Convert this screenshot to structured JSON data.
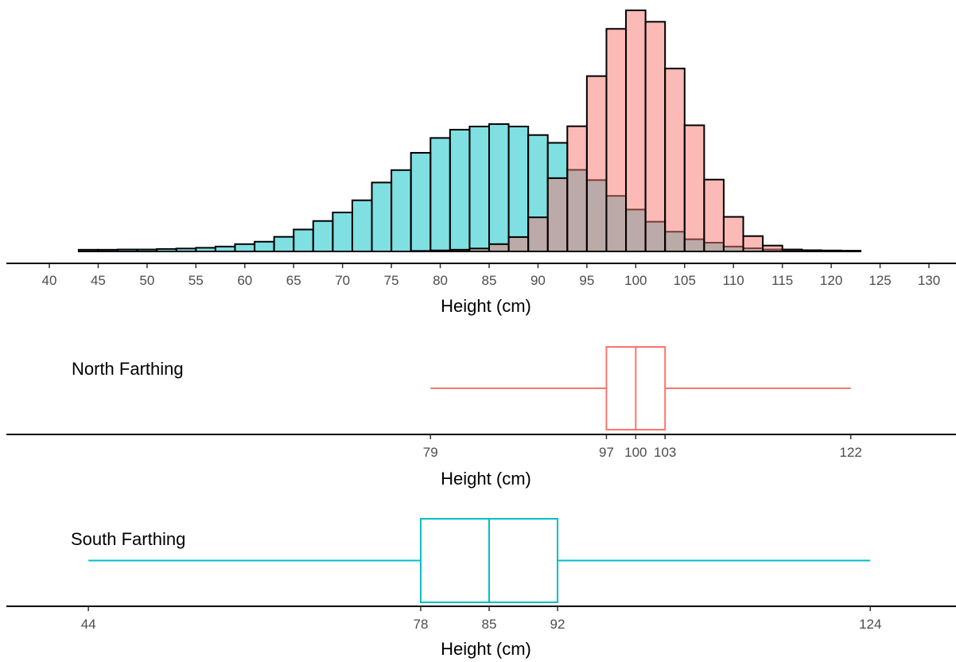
{
  "colors": {
    "north": "#F8766D",
    "north_fill": "#F8766D",
    "south": "#00BFC4",
    "south_fill": "#00BFC4",
    "bar_outline": "#000000"
  },
  "chart_data": [
    {
      "type": "bar",
      "subtype": "overlaid-histogram",
      "xlabel": "Height (cm)",
      "ylabel": "",
      "xlim": [
        40,
        130
      ],
      "x_ticks": [
        40,
        45,
        50,
        55,
        60,
        65,
        70,
        75,
        80,
        85,
        90,
        95,
        100,
        105,
        110,
        115,
        120,
        125,
        130
      ],
      "y_axis_shown": false,
      "bin_width": 2,
      "bin_starts": [
        43,
        45,
        47,
        49,
        51,
        53,
        55,
        57,
        59,
        61,
        63,
        65,
        67,
        69,
        71,
        73,
        75,
        77,
        79,
        81,
        83,
        85,
        87,
        89,
        91,
        93,
        95,
        97,
        99,
        101,
        103,
        105,
        107,
        109,
        111,
        113,
        115,
        117,
        119,
        121
      ],
      "series": [
        {
          "name": "North Farthing",
          "color_key": "north",
          "values": [
            0,
            0,
            0,
            0,
            0,
            0,
            0,
            0,
            0,
            0,
            0,
            0,
            0,
            0,
            0,
            0,
            0,
            0.2,
            0.4,
            0.7,
            1.2,
            3,
            5.9,
            14,
            30.1,
            51.4,
            72,
            91.4,
            99,
            94.3,
            75.1,
            51.8,
            29.5,
            14.2,
            6.3,
            2.4,
            0.8,
            0.3,
            0.1,
            0
          ]
        },
        {
          "name": "South Farthing",
          "color_key": "south",
          "values": [
            0.7,
            0.7,
            0.8,
            0.8,
            1,
            1.2,
            1.5,
            2,
            3,
            4,
            6,
            9,
            12.5,
            16,
            21,
            28.3,
            33.4,
            40.5,
            46.6,
            50,
            51.3,
            52.3,
            51.3,
            47.8,
            44.6,
            33.5,
            29.3,
            22.8,
            17.2,
            12.2,
            8.1,
            5,
            3.6,
            2,
            1.3,
            0.8,
            0.6,
            0.5,
            0.4,
            0.3
          ]
        }
      ]
    },
    {
      "type": "boxplot",
      "label": "North Farthing",
      "color_key": "north",
      "xlabel": "Height (cm)",
      "min": 79,
      "q1": 97,
      "median": 100,
      "q3": 103,
      "max": 122,
      "tick_labels": [
        "79",
        "97",
        "100",
        "103",
        "122"
      ]
    },
    {
      "type": "boxplot",
      "label": "South Farthing",
      "color_key": "south",
      "xlabel": "Height (cm)",
      "min": 44,
      "q1": 78,
      "median": 85,
      "q3": 92,
      "max": 124,
      "tick_labels": [
        "44",
        "78",
        "85",
        "92",
        "124"
      ]
    }
  ]
}
